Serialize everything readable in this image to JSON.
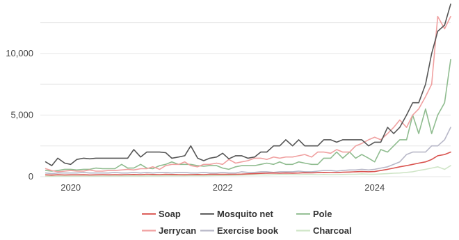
{
  "chart_data": {
    "type": "line",
    "title": "",
    "xlabel": "",
    "ylabel": "",
    "grid": "horizontal",
    "legend_position": "bottom",
    "xlim": [
      2019.6,
      2025.0
    ],
    "ylim": [
      0,
      14000
    ],
    "x_ticks": [
      {
        "value": 2020,
        "label": "2020"
      },
      {
        "value": 2022,
        "label": "2022"
      },
      {
        "value": 2024,
        "label": "2024"
      }
    ],
    "y_ticks": [
      {
        "value": 0,
        "label": "0"
      },
      {
        "value": 5000,
        "label": "5,000"
      },
      {
        "value": 10000,
        "label": "10,000"
      }
    ],
    "x": [
      2019.67,
      2019.75,
      2019.83,
      2019.92,
      2020.0,
      2020.08,
      2020.17,
      2020.25,
      2020.33,
      2020.42,
      2020.5,
      2020.58,
      2020.67,
      2020.75,
      2020.83,
      2020.92,
      2021.0,
      2021.08,
      2021.17,
      2021.25,
      2021.33,
      2021.42,
      2021.5,
      2021.58,
      2021.67,
      2021.75,
      2021.83,
      2021.92,
      2022.0,
      2022.08,
      2022.17,
      2022.25,
      2022.33,
      2022.42,
      2022.5,
      2022.58,
      2022.67,
      2022.75,
      2022.83,
      2022.92,
      2023.0,
      2023.08,
      2023.17,
      2023.25,
      2023.33,
      2023.42,
      2023.5,
      2023.58,
      2023.67,
      2023.75,
      2023.83,
      2023.92,
      2024.0,
      2024.08,
      2024.17,
      2024.25,
      2024.33,
      2024.42,
      2024.5,
      2024.58,
      2024.67,
      2024.75,
      2024.83,
      2024.92,
      2025.0
    ],
    "series": [
      {
        "name": "Soap",
        "color": "#d9534f",
        "values": [
          150,
          130,
          160,
          140,
          150,
          150,
          160,
          140,
          150,
          160,
          150,
          160,
          150,
          170,
          180,
          160,
          200,
          180,
          170,
          190,
          180,
          170,
          160,
          170,
          180,
          170,
          200,
          190,
          200,
          190,
          200,
          210,
          230,
          250,
          270,
          290,
          300,
          280,
          300,
          290,
          300,
          320,
          310,
          330,
          350,
          340,
          330,
          360,
          380,
          400,
          420,
          400,
          420,
          500,
          600,
          700,
          800,
          900,
          1000,
          1100,
          1200,
          1400,
          1700,
          1800,
          2000
        ]
      },
      {
        "name": "Mosquito net",
        "color": "#555555",
        "values": [
          1200,
          900,
          1500,
          1100,
          1000,
          1400,
          1500,
          1450,
          1500,
          1500,
          1500,
          1500,
          1500,
          1500,
          2200,
          1600,
          2000,
          2000,
          2000,
          1950,
          1500,
          1600,
          1700,
          2500,
          1500,
          1300,
          1500,
          1600,
          1900,
          1450,
          1700,
          1700,
          1500,
          1600,
          2000,
          2000,
          2500,
          2500,
          3000,
          2500,
          3000,
          2500,
          2500,
          2500,
          3000,
          3000,
          2800,
          3000,
          3000,
          3000,
          3000,
          2500,
          2800,
          2800,
          4000,
          3500,
          4000,
          5000,
          6000,
          6000,
          7500,
          10000,
          11800,
          12300,
          14000
        ]
      },
      {
        "name": "Pole",
        "color": "#8fbc8f",
        "values": [
          500,
          450,
          500,
          600,
          600,
          550,
          600,
          600,
          700,
          650,
          650,
          650,
          1000,
          700,
          700,
          1000,
          700,
          650,
          900,
          1000,
          1200,
          1000,
          1000,
          1000,
          900,
          850,
          900,
          900,
          700,
          600,
          800,
          900,
          900,
          900,
          1000,
          1100,
          1000,
          1200,
          1000,
          1000,
          1200,
          1100,
          1000,
          1000,
          1500,
          1500,
          2000,
          1500,
          2000,
          1500,
          1800,
          1500,
          1200,
          2200,
          2000,
          2500,
          3000,
          3000,
          5000,
          3500,
          5500,
          3500,
          5000,
          6000,
          9500
        ]
      },
      {
        "name": "Jerrycan",
        "color": "#f0a0a0",
        "values": [
          650,
          500,
          400,
          450,
          500,
          450,
          450,
          550,
          450,
          450,
          500,
          500,
          550,
          600,
          550,
          650,
          650,
          800,
          600,
          900,
          1000,
          1000,
          1200,
          900,
          800,
          1000,
          1000,
          1100,
          1000,
          1400,
          1100,
          1200,
          1300,
          1500,
          1500,
          1400,
          1600,
          1500,
          1600,
          1600,
          1700,
          1800,
          1600,
          2000,
          2000,
          1900,
          2200,
          2000,
          2000,
          2500,
          2700,
          3000,
          3200,
          3000,
          3500,
          4000,
          4600,
          4000,
          5000,
          5500,
          6500,
          7500,
          13000,
          12000,
          13000
        ]
      },
      {
        "name": "Exercise book",
        "color": "#b8b8c8",
        "values": [
          300,
          250,
          300,
          300,
          300,
          300,
          350,
          300,
          300,
          300,
          300,
          350,
          300,
          300,
          350,
          300,
          350,
          300,
          350,
          350,
          300,
          350,
          350,
          300,
          300,
          350,
          300,
          300,
          350,
          300,
          300,
          400,
          350,
          350,
          400,
          400,
          350,
          400,
          400,
          400,
          450,
          400,
          400,
          450,
          500,
          500,
          450,
          500,
          550,
          550,
          600,
          550,
          600,
          700,
          800,
          1000,
          1200,
          1800,
          2000,
          2000,
          2000,
          2500,
          2500,
          3000,
          4000
        ]
      },
      {
        "name": "Charcoal",
        "color": "#cfe5c7",
        "values": [
          50,
          40,
          50,
          60,
          50,
          50,
          60,
          60,
          50,
          60,
          60,
          70,
          60,
          70,
          70,
          60,
          70,
          80,
          70,
          80,
          90,
          80,
          80,
          90,
          90,
          80,
          90,
          100,
          100,
          110,
          120,
          130,
          140,
          150,
          150,
          140,
          160,
          180,
          180,
          170,
          160,
          180,
          180,
          160,
          180,
          160,
          170,
          180,
          200,
          200,
          220,
          200,
          200,
          220,
          250,
          280,
          300,
          350,
          400,
          500,
          600,
          700,
          800,
          600,
          900
        ]
      }
    ]
  }
}
